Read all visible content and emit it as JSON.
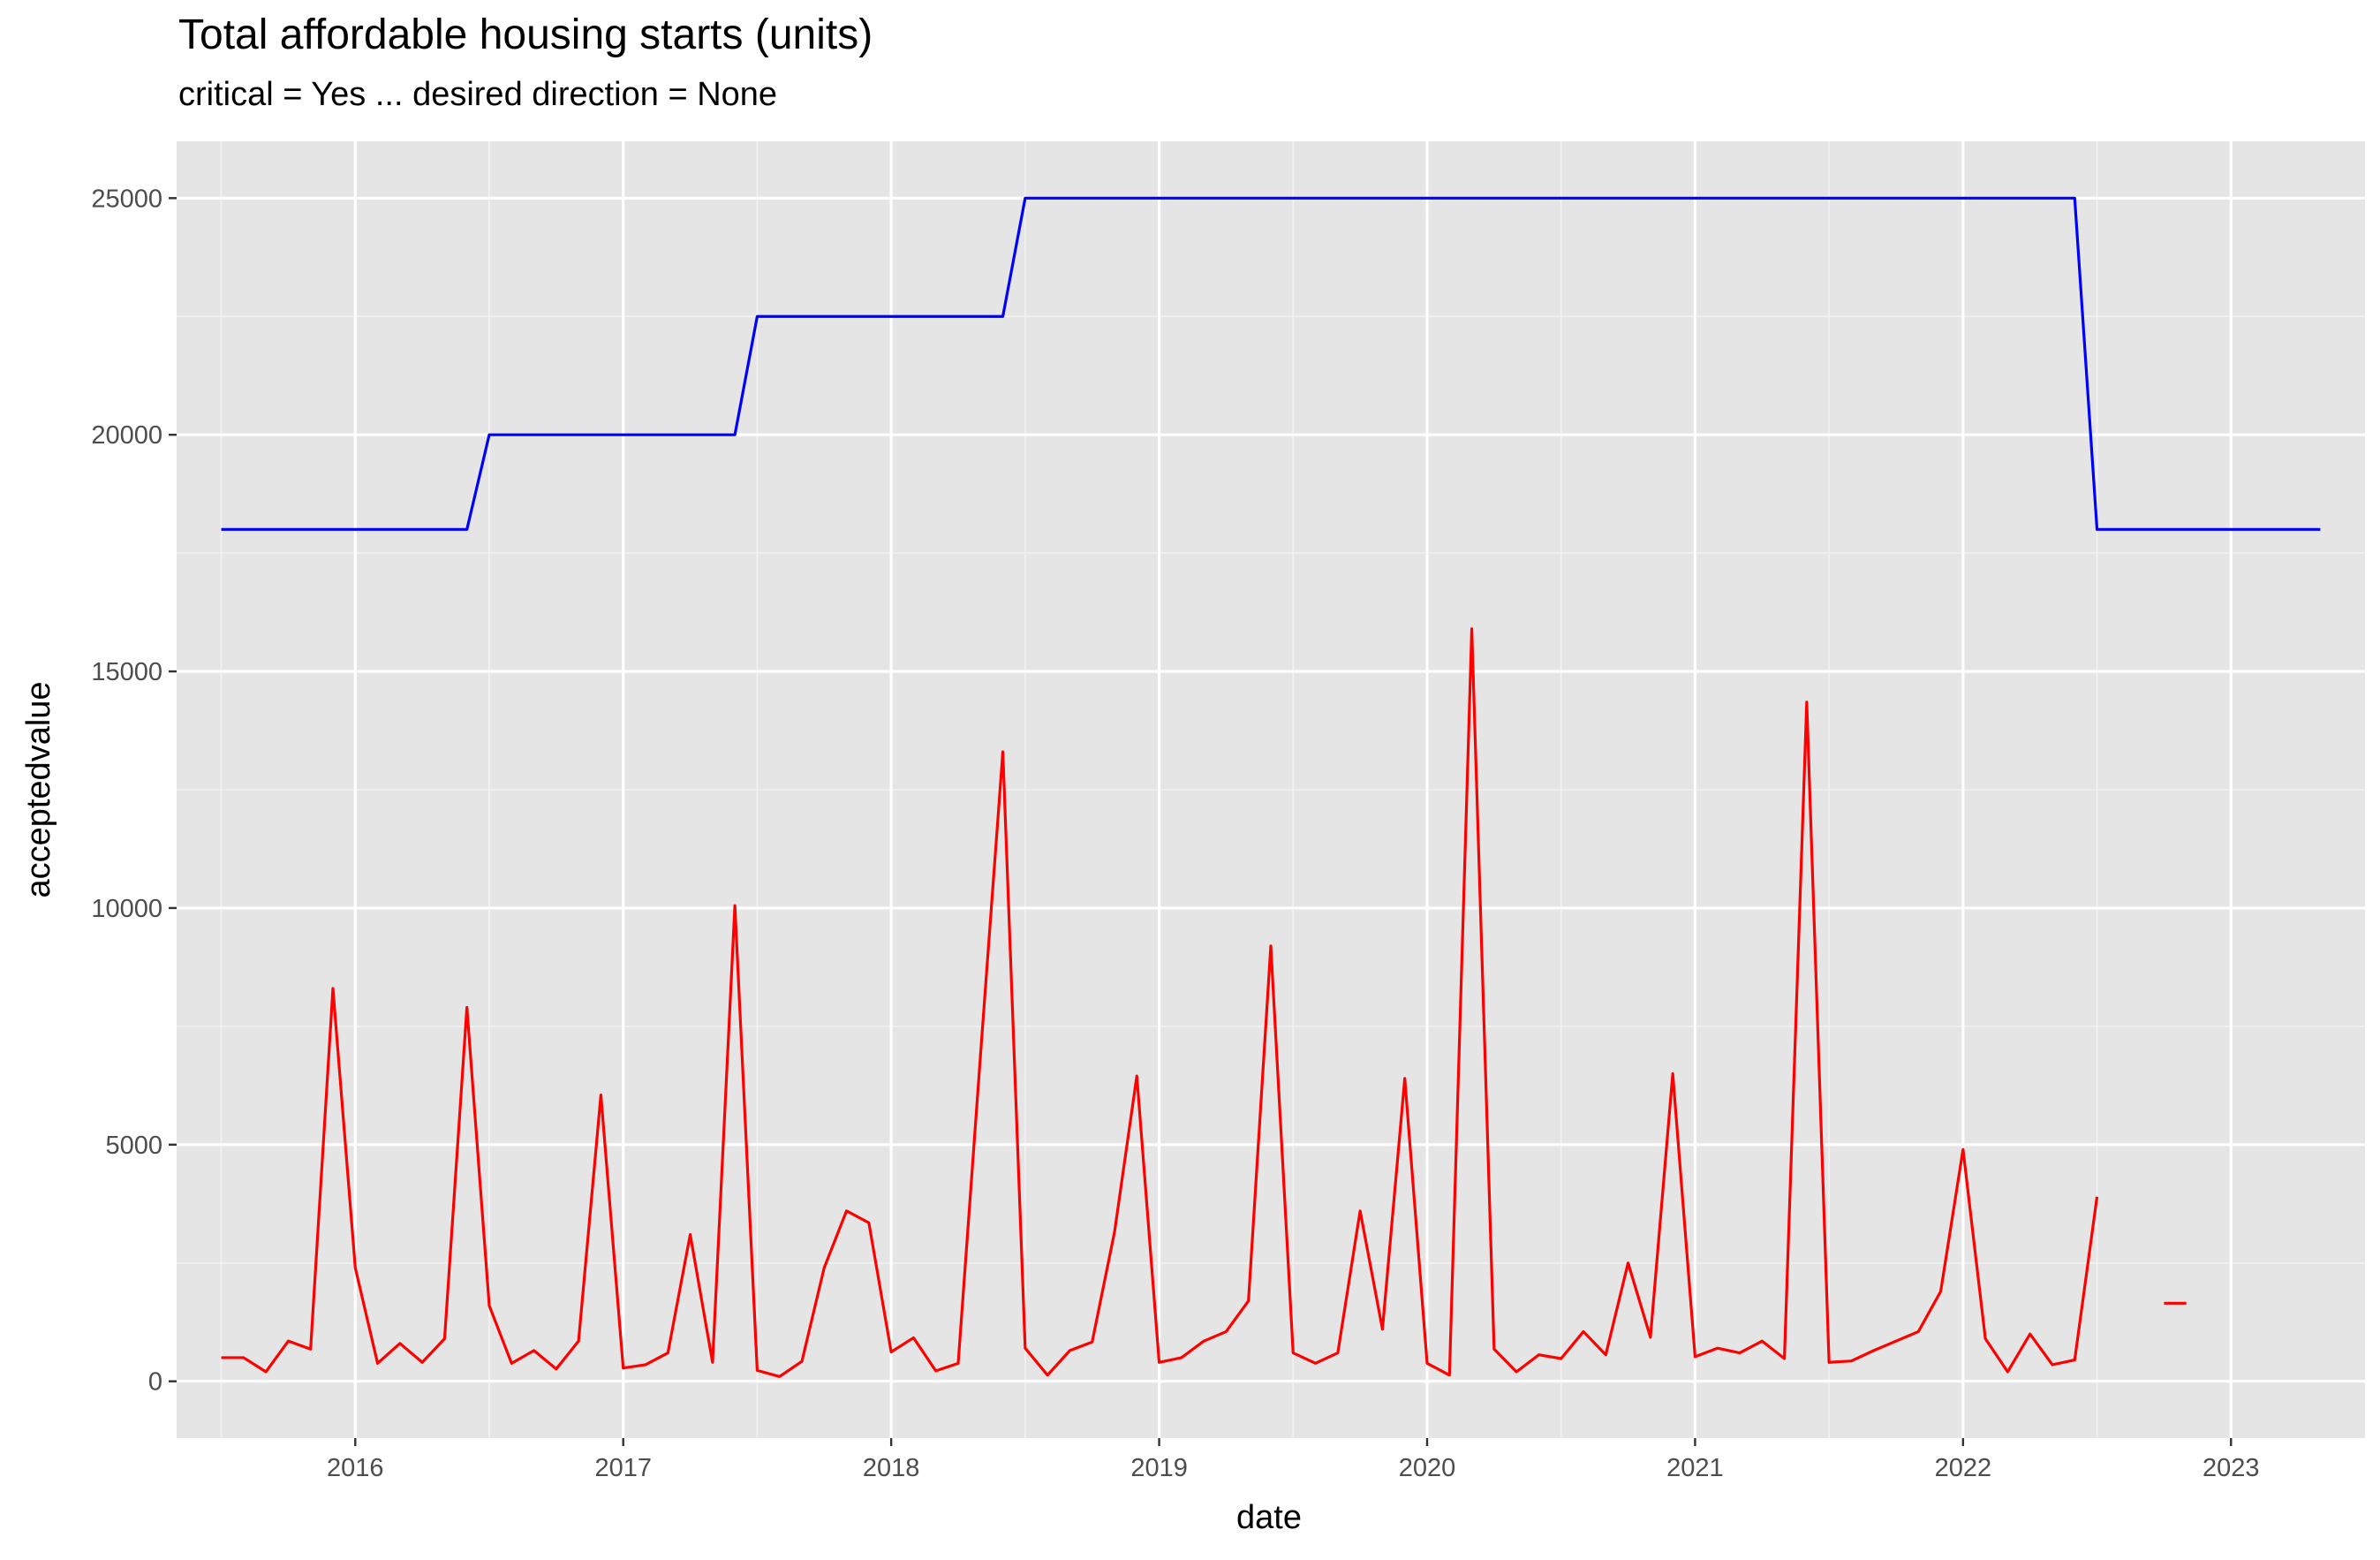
{
  "chart_data": {
    "type": "line",
    "title": "Total affordable housing starts (units)",
    "subtitle": "critical = Yes ... desired direction = None",
    "xlabel": "date",
    "ylabel": "acceptedvalue",
    "x_ticks": [
      "2016",
      "2017",
      "2018",
      "2019",
      "2020",
      "2021",
      "2022",
      "2023"
    ],
    "y_ticks": [
      0,
      5000,
      10000,
      15000,
      20000,
      25000
    ],
    "xlim": [
      "2015-05",
      "2023-07"
    ],
    "ylim": [
      -1200,
      26200
    ],
    "grid": true,
    "legend": "none",
    "series": [
      {
        "color": "#0000FF",
        "points": [
          [
            "2015-07",
            18000
          ],
          [
            "2016-06",
            18000
          ],
          [
            "2016-07",
            20000
          ],
          [
            "2017-06",
            20000
          ],
          [
            "2017-07",
            22500
          ],
          [
            "2018-06",
            22500
          ],
          [
            "2018-07",
            25000
          ],
          [
            "2022-06",
            25000
          ],
          [
            "2022-07",
            18000
          ],
          [
            "2023-05",
            18000
          ]
        ]
      },
      {
        "color": "#FF0000",
        "points": [
          [
            "2015-07",
            500
          ],
          [
            "2015-08",
            500
          ],
          [
            "2015-09",
            200
          ],
          [
            "2015-10",
            850
          ],
          [
            "2015-11",
            680
          ],
          [
            "2015-12",
            8300
          ],
          [
            "2016-01",
            2400
          ],
          [
            "2016-02",
            380
          ],
          [
            "2016-03",
            800
          ],
          [
            "2016-04",
            400
          ],
          [
            "2016-05",
            900
          ],
          [
            "2016-06",
            7900
          ],
          [
            "2016-07",
            1600
          ],
          [
            "2016-08",
            380
          ],
          [
            "2016-09",
            650
          ],
          [
            "2016-10",
            260
          ],
          [
            "2016-11",
            850
          ],
          [
            "2016-12",
            6050
          ],
          [
            "2017-01",
            280
          ],
          [
            "2017-02",
            350
          ],
          [
            "2017-03",
            600
          ],
          [
            "2017-04",
            3100
          ],
          [
            "2017-05",
            400
          ],
          [
            "2017-06",
            10050
          ],
          [
            "2017-07",
            230
          ],
          [
            "2017-08",
            100
          ],
          [
            "2017-09",
            420
          ],
          [
            "2017-10",
            2400
          ],
          [
            "2017-11",
            3600
          ],
          [
            "2017-12",
            3350
          ],
          [
            "2018-01",
            620
          ],
          [
            "2018-02",
            920
          ],
          [
            "2018-03",
            220
          ],
          [
            "2018-04",
            380
          ],
          [
            "2018-05",
            6900
          ],
          [
            "2018-06",
            13300
          ],
          [
            "2018-07",
            700
          ],
          [
            "2018-08",
            130
          ],
          [
            "2018-09",
            650
          ],
          [
            "2018-10",
            830
          ],
          [
            "2018-11",
            3150
          ],
          [
            "2018-12",
            6450
          ],
          [
            "2019-01",
            400
          ],
          [
            "2019-02",
            500
          ],
          [
            "2019-03",
            850
          ],
          [
            "2019-04",
            1050
          ],
          [
            "2019-05",
            1700
          ],
          [
            "2019-06",
            9200
          ],
          [
            "2019-07",
            600
          ],
          [
            "2019-08",
            380
          ],
          [
            "2019-09",
            600
          ],
          [
            "2019-10",
            3600
          ],
          [
            "2019-11",
            1100
          ],
          [
            "2019-12",
            6400
          ],
          [
            "2020-01",
            380
          ],
          [
            "2020-02",
            130
          ],
          [
            "2020-03",
            15900
          ],
          [
            "2020-04",
            680
          ],
          [
            "2020-05",
            200
          ],
          [
            "2020-06",
            560
          ],
          [
            "2020-07",
            480
          ],
          [
            "2020-08",
            1050
          ],
          [
            "2020-09",
            560
          ],
          [
            "2020-10",
            2500
          ],
          [
            "2020-11",
            930
          ],
          [
            "2020-12",
            6500
          ],
          [
            "2021-01",
            520
          ],
          [
            "2021-02",
            700
          ],
          [
            "2021-03",
            600
          ],
          [
            "2021-04",
            850
          ],
          [
            "2021-05",
            480
          ],
          [
            "2021-06",
            14350
          ],
          [
            "2021-07",
            400
          ],
          [
            "2021-08",
            430
          ],
          [
            "2021-09",
            650
          ],
          [
            "2021-10",
            850
          ],
          [
            "2021-11",
            1050
          ],
          [
            "2021-12",
            1900
          ],
          [
            "2022-01",
            4900
          ],
          [
            "2022-02",
            900
          ],
          [
            "2022-03",
            200
          ],
          [
            "2022-04",
            1000
          ],
          [
            "2022-05",
            350
          ],
          [
            "2022-06",
            450
          ],
          [
            "2022-07",
            3900
          ]
        ]
      },
      {
        "color": "#FF0000",
        "points": [
          [
            "2022-10",
            1650
          ],
          [
            "2022-11",
            1650
          ]
        ]
      }
    ]
  }
}
